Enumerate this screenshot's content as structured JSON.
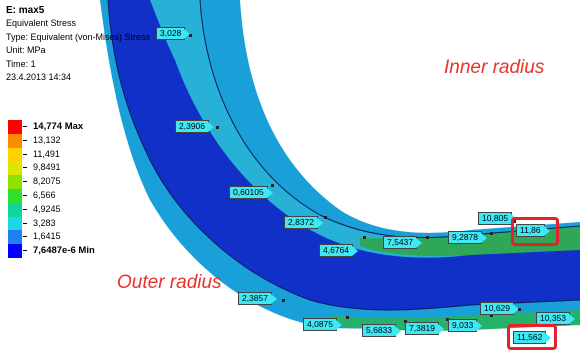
{
  "info": {
    "title": "E: max5",
    "result": "Equivalent Stress",
    "type": "Type: Equivalent (von-Mises) Stress",
    "unit": "Unit: MPa",
    "time": "Time: 1",
    "date": "23.4.2013 14:34"
  },
  "legend": {
    "entries": [
      {
        "label": "14,774 Max",
        "color": "#ff0000",
        "bold": true
      },
      {
        "label": "13,132",
        "color": "#ff8c00",
        "bold": false
      },
      {
        "label": "11,491",
        "color": "#ffd200",
        "bold": false
      },
      {
        "label": "9,8491",
        "color": "#dce600",
        "bold": false
      },
      {
        "label": "8,2075",
        "color": "#8ee100",
        "bold": false
      },
      {
        "label": "6,566",
        "color": "#2ee12e",
        "bold": false
      },
      {
        "label": "4,9245",
        "color": "#15d49a",
        "bold": false
      },
      {
        "label": "3,283",
        "color": "#1ad8e8",
        "bold": false
      },
      {
        "label": "1,6415",
        "color": "#1f82f0",
        "bold": false
      },
      {
        "label": "7,6487e-6 Min",
        "color": "#0000ff",
        "bold": true
      }
    ]
  },
  "probes": [
    {
      "value": "3,028"
    },
    {
      "value": "2,3906"
    },
    {
      "value": "0,60105"
    },
    {
      "value": "2,8372"
    },
    {
      "value": "4,6764"
    },
    {
      "value": "7,5437"
    },
    {
      "value": "9,2878"
    },
    {
      "value": "10,805"
    },
    {
      "value": "11,86"
    },
    {
      "value": "2,3857"
    },
    {
      "value": "4,0875"
    },
    {
      "value": "5,6833"
    },
    {
      "value": "7,3819"
    },
    {
      "value": "9,033"
    },
    {
      "value": "10,629"
    },
    {
      "value": "10,353"
    },
    {
      "value": "11,562"
    }
  ],
  "annotations": {
    "inner": "Inner radius",
    "outer": "Outer radius"
  },
  "colors": {
    "deep_blue": "#1030c8",
    "mid_blue": "#1aa0d8",
    "cyan": "#2cc8d8",
    "green": "#2ea858",
    "highlight_red": "#e8202a",
    "annotation_red": "#e8332a",
    "probe_bg": "#3ee8f5"
  }
}
